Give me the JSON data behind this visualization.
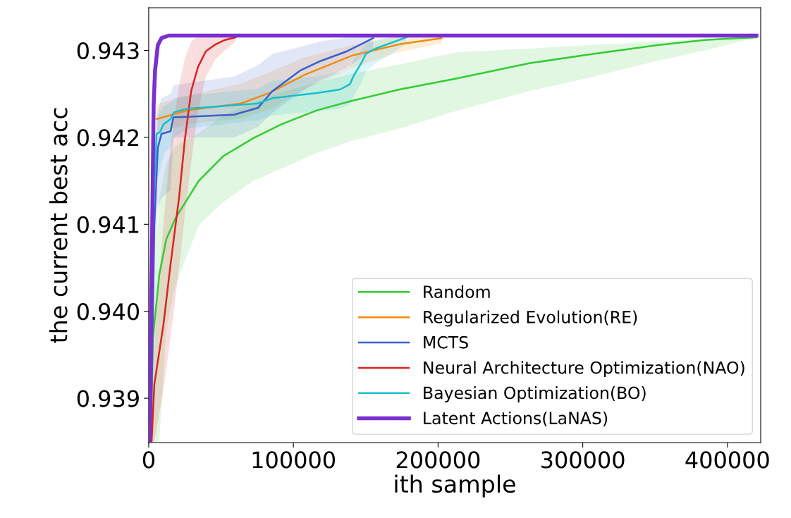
{
  "chart_data": {
    "type": "line",
    "xlabel": "ith sample",
    "ylabel": "the current best acc",
    "xlim": [
      0,
      423000
    ],
    "xticks": [
      0,
      100000,
      200000,
      300000,
      400000
    ],
    "ylim": [
      0.93849,
      0.94349
    ],
    "yticks": [
      0.939,
      {
        "value": 0.94,
        "label": "0.940"
      },
      0.941,
      0.942,
      0.943
    ],
    "grid": false,
    "legend": "bottom right",
    "marker": "none",
    "line_style": "solid",
    "series": [
      {
        "name": "Random",
        "color": "#33cc33",
        "x": [
          1500,
          2900,
          7300,
          12200,
          18500,
          34600,
          51200,
          72200,
          91700,
          116100,
          140500,
          173200,
          213700,
          262400,
          302900,
          351700,
          384400,
          420000
        ],
        "values": [
          0.9385,
          0.93969,
          0.94042,
          0.94083,
          0.94107,
          0.9415,
          0.94178,
          0.94199,
          0.94215,
          0.94231,
          0.94242,
          0.94255,
          0.94268,
          0.94285,
          0.94295,
          0.94306,
          0.94312,
          0.94315
        ],
        "lower": [
          0.9385,
          0.9385,
          0.9385,
          0.9398,
          0.9403,
          0.94099,
          0.94125,
          0.9415,
          0.94164,
          0.94182,
          0.94196,
          0.9421,
          0.94231,
          0.94253,
          0.94268,
          0.94288,
          0.943,
          0.94315
        ],
        "upper": [
          0.9389,
          0.9402,
          0.9413,
          0.9417,
          0.9419,
          0.94205,
          0.94225,
          0.9424,
          0.94252,
          0.94263,
          0.94273,
          0.94284,
          0.94298,
          0.94302,
          0.94306,
          0.9431,
          0.94313,
          0.94317
        ]
      },
      {
        "name": "Regularized Evolution(RE)",
        "color": "#f08c0a",
        "x": [
          5400,
          26800,
          63900,
          83400,
          107800,
          140500,
          173200,
          202400
        ],
        "values": [
          0.94221,
          0.94231,
          0.94239,
          0.94251,
          0.94272,
          0.94294,
          0.94307,
          0.94314
        ],
        "lower": [
          0.94205,
          0.94215,
          0.94222,
          0.94232,
          0.94255,
          0.9428,
          0.94298,
          0.94308
        ],
        "upper": [
          0.94238,
          0.94248,
          0.94262,
          0.94275,
          0.94292,
          0.94306,
          0.94316,
          0.94317
        ]
      },
      {
        "name": "MCTS",
        "color": "#3a5fcd",
        "x": [
          1500,
          3900,
          6300,
          8800,
          15100,
          17100,
          59000,
          75600,
          85400,
          104900,
          117600,
          137100,
          155100
        ],
        "values": [
          0.9385,
          0.94099,
          0.94188,
          0.94204,
          0.94207,
          0.94223,
          0.94226,
          0.94234,
          0.94253,
          0.94277,
          0.94287,
          0.94299,
          0.94314
        ],
        "lower": [
          0.9385,
          0.9404,
          0.9412,
          0.9413,
          0.9414,
          0.942,
          0.942,
          0.94212,
          0.94228,
          0.94252,
          0.94265,
          0.9428,
          0.94302
        ],
        "upper": [
          0.939,
          0.9415,
          0.9423,
          0.94245,
          0.9425,
          0.9426,
          0.9427,
          0.94283,
          0.94296,
          0.94304,
          0.9431,
          0.94315,
          0.94317
        ]
      },
      {
        "name": "Neural Architecture Optimization(NAO)",
        "color": "#dd2222",
        "x": [
          2000,
          3900,
          10200,
          15100,
          21000,
          24900,
          29300,
          34100,
          39500,
          46300,
          52700,
          60000
        ],
        "values": [
          0.9385,
          0.93916,
          0.93985,
          0.94054,
          0.94131,
          0.94196,
          0.94253,
          0.94281,
          0.94299,
          0.94307,
          0.94312,
          0.94315
        ],
        "lower": [
          0.9385,
          0.9385,
          0.9391,
          0.9397,
          0.9405,
          0.9411,
          0.9417,
          0.9423,
          0.9427,
          0.9429,
          0.943,
          0.9431
        ],
        "upper": [
          0.9389,
          0.9397,
          0.941,
          0.9419,
          0.9426,
          0.9429,
          0.9431,
          0.94317,
          0.94317,
          0.94317,
          0.94317,
          0.94317
        ]
      },
      {
        "name": "Bayesian Optimization(BO)",
        "color": "#17becf",
        "x": [
          500,
          1500,
          5400,
          7800,
          10200,
          15100,
          17600,
          26800,
          75600,
          85400,
          116100,
          132200,
          139000,
          142000,
          146800,
          150200,
          156600,
          173200,
          178000
        ],
        "values": [
          0.9385,
          0.94034,
          0.94204,
          0.94206,
          0.94215,
          0.94221,
          0.94229,
          0.94233,
          0.94239,
          0.94245,
          0.94251,
          0.94255,
          0.94261,
          0.94272,
          0.94285,
          0.94296,
          0.94302,
          0.94312,
          0.94315
        ],
        "lower": [
          0.9385,
          0.9395,
          0.9415,
          0.9416,
          0.9418,
          0.9419,
          0.942,
          0.9421,
          0.9422,
          0.94225,
          0.9423,
          0.94233,
          0.94238,
          0.94248,
          0.94262,
          0.94276,
          0.94285,
          0.94302,
          0.94308
        ],
        "upper": [
          0.9387,
          0.941,
          0.94225,
          0.94228,
          0.94236,
          0.9424,
          0.94245,
          0.94248,
          0.94256,
          0.94265,
          0.9427,
          0.94275,
          0.9428,
          0.9429,
          0.943,
          0.94308,
          0.94312,
          0.94317,
          0.94317
        ]
      },
      {
        "name": "Latent Actions(LaNAS)",
        "color": "#7b2fd0",
        "x": [
          500,
          2000,
          3400,
          4400,
          6300,
          8800,
          13700,
          420000
        ],
        "values": [
          0.9385,
          0.94034,
          0.94237,
          0.94277,
          0.94306,
          0.94314,
          0.94317,
          0.94317
        ]
      }
    ]
  }
}
